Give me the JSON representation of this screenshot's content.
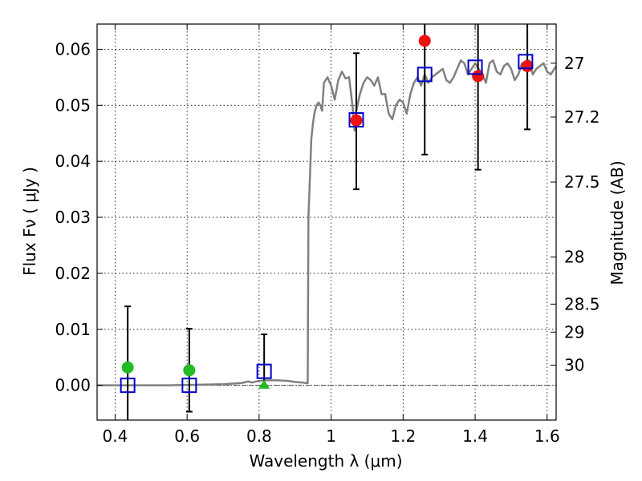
{
  "chart_data": {
    "type": "scatter",
    "xlabel": "Wavelength  λ (μm)",
    "ylabel": "Flux  Fν  ( μJy )",
    "y2label": "Magnitude (AB)",
    "xlim": [
      0.35,
      1.625
    ],
    "ylim": [
      -0.0062,
      0.0645
    ],
    "grid": true,
    "x_ticks": [
      0.4,
      0.6,
      0.8,
      1.0,
      1.2,
      1.4,
      1.6
    ],
    "x_tick_labels": [
      "0.4",
      "0.6",
      "0.8",
      "1",
      "1.2",
      "1.4",
      "1.6"
    ],
    "y_ticks": [
      0.0,
      0.01,
      0.02,
      0.03,
      0.04,
      0.05,
      0.06
    ],
    "y_tick_labels": [
      "0.00",
      "0.01",
      "0.02",
      "0.03",
      "0.04",
      "0.05",
      "0.06"
    ],
    "y2_ticks": [
      {
        "label": "27",
        "flux": 0.0575
      },
      {
        "label": "27.2",
        "flux": 0.0479
      },
      {
        "label": "27.5",
        "flux": 0.0363
      },
      {
        "label": "28",
        "flux": 0.0229
      },
      {
        "label": "28.5",
        "flux": 0.0145
      },
      {
        "label": "29",
        "flux": 0.0095
      },
      {
        "label": "30",
        "flux": 0.0036
      }
    ],
    "model_spectrum": {
      "color": "#808080",
      "x": [
        0.35,
        0.55,
        0.7,
        0.75,
        0.77,
        0.78,
        0.8,
        0.82,
        0.85,
        0.88,
        0.9,
        0.92,
        0.93,
        0.935,
        0.937,
        0.94,
        0.945,
        0.95,
        0.955,
        0.96,
        0.965,
        0.97,
        0.975,
        0.98,
        0.985,
        0.99,
        1.0,
        1.01,
        1.02,
        1.03,
        1.04,
        1.05,
        1.06,
        1.065,
        1.07,
        1.08,
        1.09,
        1.1,
        1.11,
        1.12,
        1.13,
        1.14,
        1.15,
        1.16,
        1.17,
        1.18,
        1.19,
        1.2,
        1.21,
        1.22,
        1.23,
        1.24,
        1.25,
        1.26,
        1.27,
        1.28,
        1.29,
        1.3,
        1.31,
        1.32,
        1.33,
        1.34,
        1.35,
        1.36,
        1.37,
        1.38,
        1.39,
        1.4,
        1.41,
        1.42,
        1.43,
        1.44,
        1.45,
        1.46,
        1.47,
        1.48,
        1.49,
        1.5,
        1.51,
        1.52,
        1.53,
        1.54,
        1.55,
        1.56,
        1.57,
        1.58,
        1.59,
        1.6,
        1.61,
        1.625
      ],
      "y": [
        0.0,
        0.0,
        0.0002,
        0.0004,
        0.0007,
        0.0005,
        0.0008,
        0.0009,
        0.0009,
        0.0008,
        0.0006,
        0.0005,
        0.0004,
        0.0004,
        0.03,
        0.035,
        0.044,
        0.047,
        0.049,
        0.05,
        0.0505,
        0.05,
        0.049,
        0.054,
        0.0545,
        0.055,
        0.0535,
        0.051,
        0.0545,
        0.056,
        0.0548,
        0.055,
        0.0495,
        0.0455,
        0.049,
        0.052,
        0.054,
        0.055,
        0.0545,
        0.0535,
        0.055,
        0.052,
        0.052,
        0.0485,
        0.0475,
        0.05,
        0.051,
        0.0505,
        0.0485,
        0.052,
        0.054,
        0.055,
        0.0535,
        0.0555,
        0.054,
        0.055,
        0.0555,
        0.056,
        0.0565,
        0.0545,
        0.054,
        0.055,
        0.0565,
        0.058,
        0.0575,
        0.0555,
        0.0565,
        0.0575,
        0.0565,
        0.0555,
        0.054,
        0.0575,
        0.058,
        0.056,
        0.0555,
        0.057,
        0.0575,
        0.0565,
        0.0545,
        0.0555,
        0.0575,
        0.0565,
        0.058,
        0.0555,
        0.0565,
        0.057,
        0.0575,
        0.056,
        0.0555,
        0.057
      ]
    },
    "observed": {
      "x": [
        0.435,
        0.606,
        0.814,
        1.07,
        1.26,
        1.408,
        1.545
      ],
      "y": [
        0.0032,
        0.0027,
        0.0,
        0.0473,
        0.0615,
        0.0552,
        0.057
      ],
      "yerr_low": [
        -0.0065,
        -0.0047,
        0.0,
        0.035,
        0.0412,
        0.0385,
        0.0457
      ],
      "yerr_high": [
        0.0141,
        0.0101,
        0.0091,
        0.0593,
        0.0665,
        0.0665,
        0.0665
      ],
      "markers": [
        "circle",
        "circle",
        "triangle",
        "circle",
        "circle",
        "circle",
        "circle"
      ],
      "colors": [
        "#22bb22",
        "#22bb22",
        "#22bb22",
        "#ee1111",
        "#ee1111",
        "#ee1111",
        "#ee1111"
      ]
    },
    "model_photometry": {
      "color": "#0000cc",
      "x": [
        0.435,
        0.606,
        0.814,
        1.07,
        1.26,
        1.4,
        1.54
      ],
      "y": [
        0.0,
        0.0,
        0.0025,
        0.0474,
        0.0555,
        0.0568,
        0.0578
      ]
    }
  }
}
